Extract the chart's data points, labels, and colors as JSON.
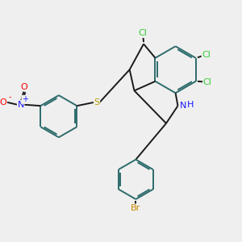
{
  "bg_color": "#efefef",
  "bond_color": "#2d6b6b",
  "bond_color_dark": "#1a1a1a",
  "bond_width": 1.4,
  "dbo": 0.07,
  "atom_colors": {
    "Cl": "#32cd32",
    "N": "#1a1aff",
    "H": "#1a1aff",
    "O_red": "#ff0000",
    "S": "#b8a000",
    "Br": "#cc8800",
    "NO2_N": "#1a1aff",
    "plus": "#1a1aff",
    "minus": "#ff0000"
  },
  "figsize": [
    3.0,
    3.0
  ],
  "dpi": 100
}
